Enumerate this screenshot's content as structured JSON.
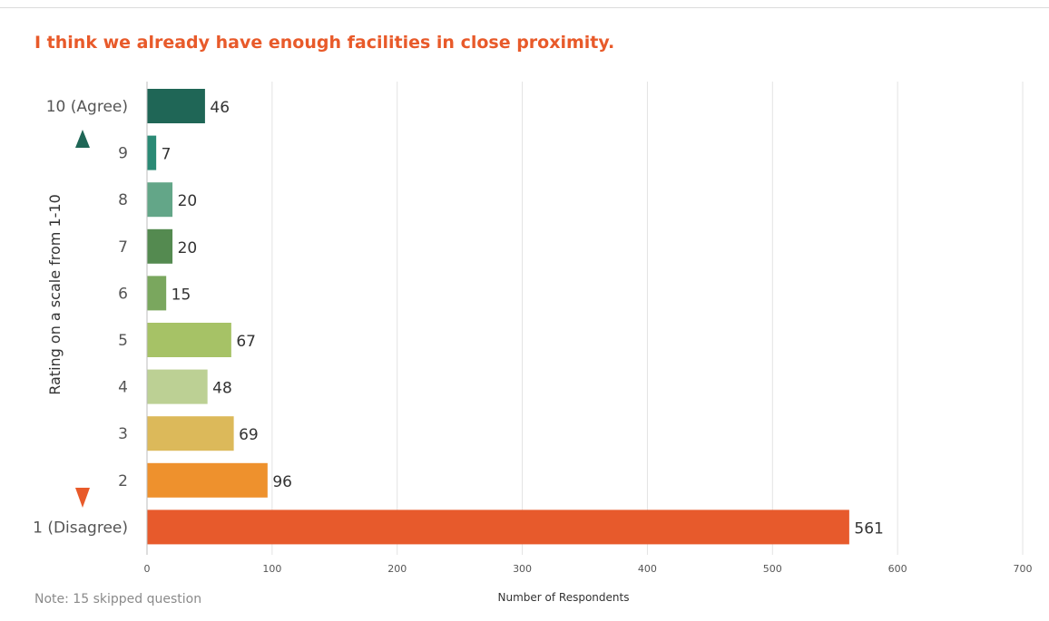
{
  "chart_data": {
    "type": "bar",
    "orientation": "horizontal",
    "title": "I think we already have enough facilities in close proximity.",
    "categories": [
      "10 (Agree)",
      "9",
      "8",
      "7",
      "6",
      "5",
      "4",
      "3",
      "2",
      "1 (Disagree)"
    ],
    "values": [
      46,
      7,
      20,
      20,
      15,
      67,
      48,
      69,
      96,
      561
    ],
    "colors": [
      "#1f6656",
      "#2a8a75",
      "#63a688",
      "#548a50",
      "#7aa75e",
      "#a6c266",
      "#bcd094",
      "#dcb95a",
      "#ee912d",
      "#e75a2c"
    ],
    "xlabel": "Number of Respondents",
    "ylabel": "Rating on a scale from 1-10",
    "xlim": [
      0,
      700
    ],
    "xticks": [
      0,
      100,
      200,
      300,
      400,
      500,
      600,
      700
    ],
    "grid": true,
    "legend": "none",
    "arrow_gradient": [
      "#1f6656",
      "#8dae4f",
      "#e85a2a"
    ]
  },
  "note": "Note: 15 skipped question"
}
